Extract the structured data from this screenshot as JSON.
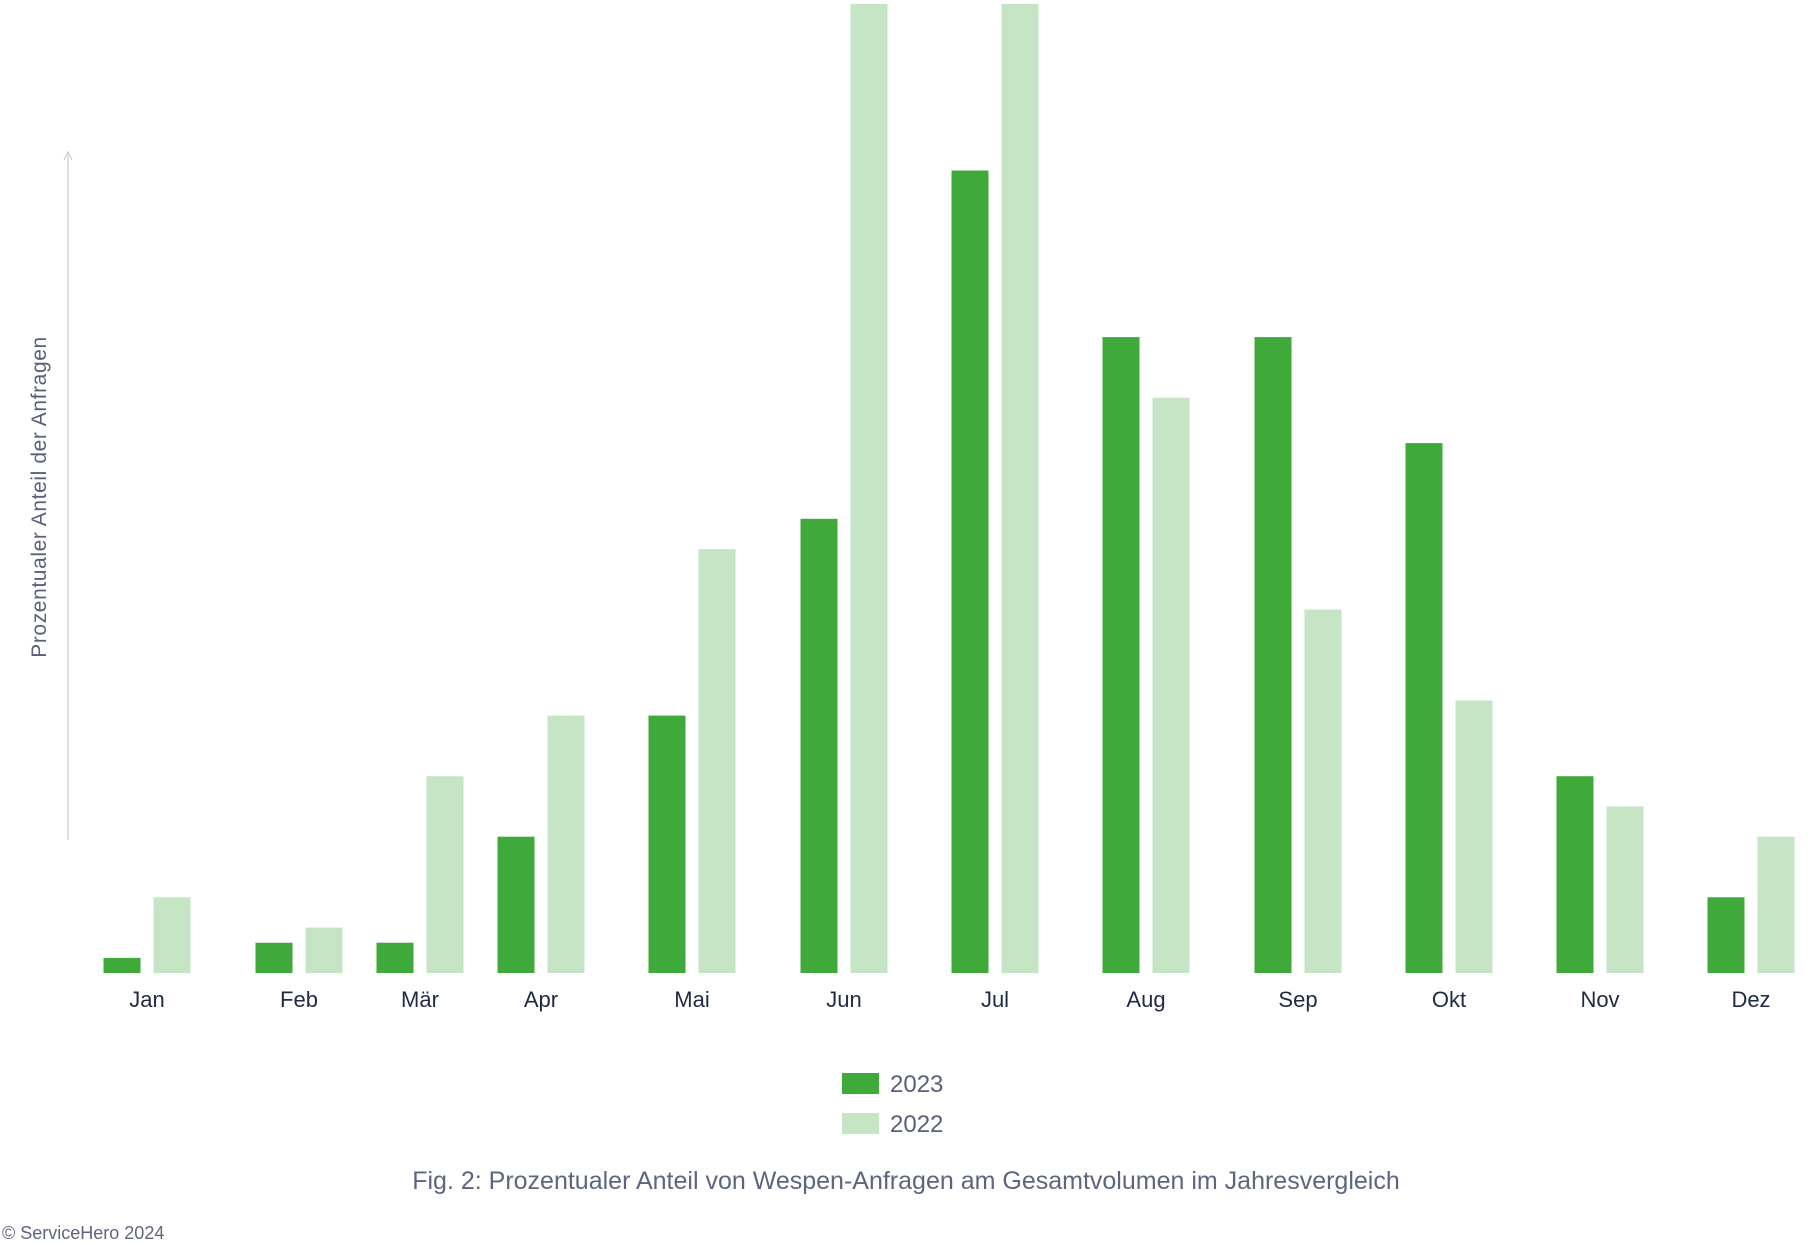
{
  "chart_data": {
    "type": "bar",
    "ylabel": "Prozentualer Anteil der Anfragen",
    "categories": [
      "Jan",
      "Feb",
      "Mär",
      "Apr",
      "Mai",
      "Jun",
      "Jul",
      "Aug",
      "Sep",
      "Okt",
      "Nov",
      "Dez"
    ],
    "series": [
      {
        "name": "2023",
        "color": "#3fa93a",
        "values": [
          1,
          2,
          2,
          9,
          17,
          30,
          53,
          42,
          42,
          35,
          13,
          5
        ]
      },
      {
        "name": "2022",
        "color": "#c6e5c4",
        "values": [
          5,
          3,
          13,
          17,
          28,
          64,
          64,
          38,
          24,
          18,
          11,
          9
        ]
      }
    ],
    "ylim": [
      0,
      64
    ],
    "grid": false,
    "legend": "bottom-center"
  },
  "caption": "Fig. 2: Prozentualer Anteil von Wespen-Anfragen am Gesamtvolumen im Jahresvergleich",
  "copyright": "© ServiceHero 2024"
}
